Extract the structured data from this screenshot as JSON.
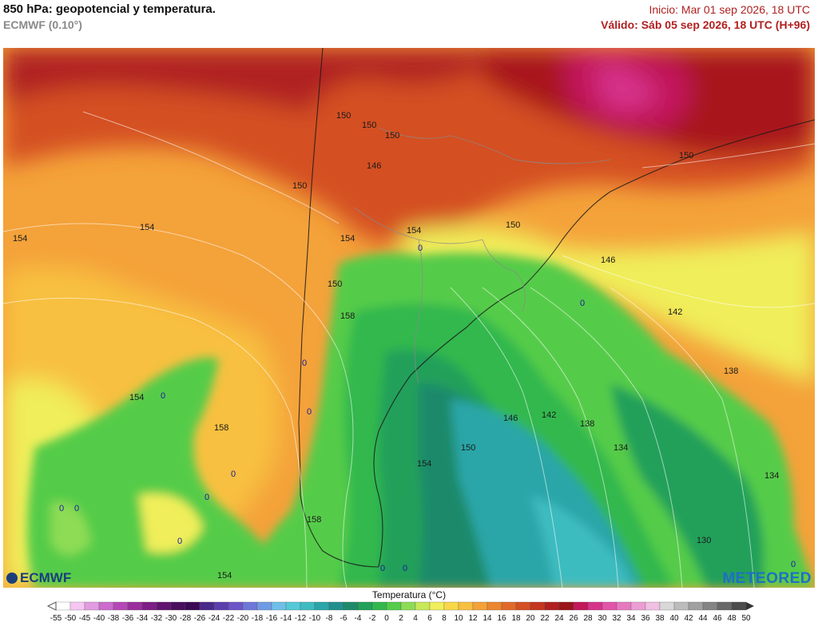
{
  "header": {
    "title": "850 hPa: geopotencial y temperatura.",
    "subtitle": "ECMWF (0.10°)",
    "init": "Inicio: Mar 01 sep 2026, 18 UTC",
    "valid": "Válido: Sáb 05 sep 2026, 18 UTC (H+96)"
  },
  "contour_labels": [
    {
      "text": "150"
    },
    {
      "text": "150"
    },
    {
      "text": "150"
    },
    {
      "text": "146"
    },
    {
      "text": "150"
    },
    {
      "text": "150"
    },
    {
      "text": "154"
    },
    {
      "text": "154"
    },
    {
      "text": "154"
    },
    {
      "text": "154"
    },
    {
      "text": "150"
    },
    {
      "text": "146"
    },
    {
      "text": "0"
    },
    {
      "text": "150"
    },
    {
      "text": "158"
    },
    {
      "text": "142"
    },
    {
      "text": "0"
    },
    {
      "text": "0"
    },
    {
      "text": "138"
    },
    {
      "text": "154"
    },
    {
      "text": "0"
    },
    {
      "text": "0"
    },
    {
      "text": "158"
    },
    {
      "text": "146"
    },
    {
      "text": "142"
    },
    {
      "text": "138"
    },
    {
      "text": "150"
    },
    {
      "text": "134"
    },
    {
      "text": "154"
    },
    {
      "text": "0"
    },
    {
      "text": "0"
    },
    {
      "text": "134"
    },
    {
      "text": "0"
    },
    {
      "text": "0"
    },
    {
      "text": "0"
    },
    {
      "text": "158"
    },
    {
      "text": "0"
    },
    {
      "text": "130"
    },
    {
      "text": "154"
    },
    {
      "text": "0"
    },
    {
      "text": "0"
    }
  ],
  "logos": {
    "left": "ECMWF",
    "right": "METEORED"
  },
  "colorbar": {
    "title": "Temperatura (°C)",
    "ticks": [
      "-55",
      "-50",
      "-45",
      "-40",
      "-38",
      "-36",
      "-34",
      "-32",
      "-30",
      "-28",
      "-26",
      "-24",
      "-22",
      "-20",
      "-18",
      "-16",
      "-14",
      "-12",
      "-10",
      "-8",
      "-6",
      "-4",
      "-2",
      "0",
      "2",
      "4",
      "6",
      "8",
      "10",
      "12",
      "14",
      "16",
      "18",
      "20",
      "22",
      "24",
      "26",
      "28",
      "30",
      "32",
      "34",
      "36",
      "38",
      "40",
      "42",
      "44",
      "46",
      "48",
      "50"
    ],
    "colors": [
      "#ffffff",
      "#f6c6f2",
      "#e29be0",
      "#cc6ccc",
      "#b548b6",
      "#9a2e9e",
      "#7e1e86",
      "#611470",
      "#4a0e5e",
      "#3b0a55",
      "#4a2a8a",
      "#5c3fae",
      "#6c55c8",
      "#6e77d8",
      "#6f9be4",
      "#6fbfe8",
      "#55c9d8",
      "#3cbcc0",
      "#2aa6a8",
      "#22908e",
      "#1f8a6a",
      "#22a05a",
      "#33b84e",
      "#55cc4a",
      "#8edc55",
      "#c8e85a",
      "#f0ee5a",
      "#f8d84a",
      "#f8c040",
      "#f4a23a",
      "#ec8630",
      "#e06a2a",
      "#d44f24",
      "#c43620",
      "#b02020",
      "#9a1418",
      "#c2185c",
      "#d6338a",
      "#e255a8",
      "#e67ac0",
      "#ec9ed4",
      "#f0bfe2",
      "#d8d8d8",
      "#bcbcbc",
      "#a0a0a0",
      "#848484",
      "#686868",
      "#4c4c4c"
    ]
  }
}
